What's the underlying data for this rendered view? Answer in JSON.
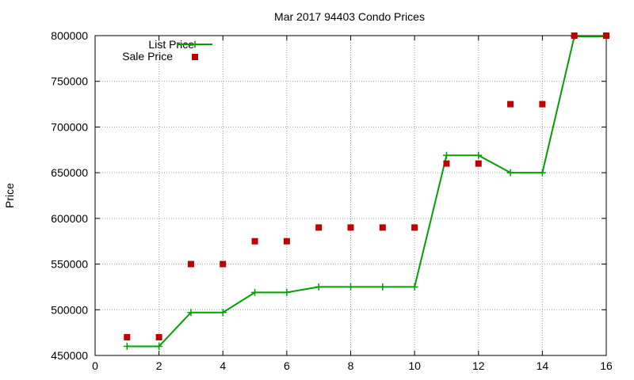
{
  "chart_data": {
    "type": "line",
    "title": "Mar 2017 94403 Condo Prices",
    "xlabel": "",
    "ylabel": "Price",
    "xlim": [
      0,
      16
    ],
    "ylim": [
      450000,
      800000
    ],
    "xticks": [
      0,
      2,
      4,
      6,
      8,
      10,
      12,
      14,
      16
    ],
    "yticks": [
      450000,
      500000,
      550000,
      600000,
      650000,
      700000,
      750000,
      800000
    ],
    "grid": true,
    "legend_position": "top-left",
    "series": [
      {
        "name": "List Price",
        "style": "line-with-plus-markers",
        "color": "#00a000",
        "x": [
          1,
          2,
          3,
          4,
          5,
          6,
          7,
          8,
          9,
          10,
          11,
          12,
          13,
          14,
          15,
          16
        ],
        "values": [
          460000,
          460000,
          497000,
          497000,
          519000,
          519000,
          525000,
          525000,
          525000,
          525000,
          669000,
          669000,
          650000,
          650000,
          799000,
          799000
        ]
      },
      {
        "name": "Sale Price",
        "style": "square-markers",
        "color": "#c00000",
        "x": [
          1,
          2,
          3,
          4,
          5,
          6,
          7,
          8,
          9,
          10,
          11,
          12,
          13,
          14,
          15,
          16
        ],
        "values": [
          470000,
          470000,
          550000,
          550000,
          575000,
          575000,
          590000,
          590000,
          590000,
          590000,
          660000,
          660000,
          725000,
          725000,
          800000,
          800000
        ]
      }
    ]
  }
}
